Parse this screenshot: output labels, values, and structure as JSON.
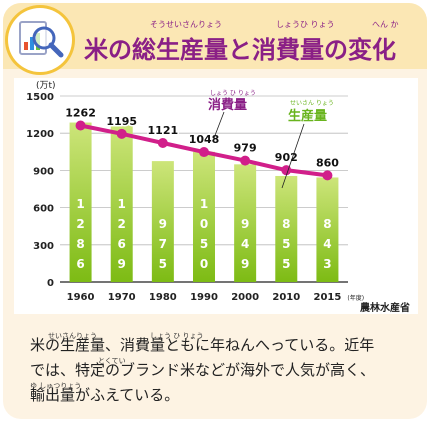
{
  "title": "米の総生産量と消費量の変化",
  "title_ruby": {
    "sousei": "そうせいさんりょう",
    "shouhi": "しょうひ りょう",
    "henka": "へん か"
  },
  "colors": {
    "title": "#8a1f86",
    "bar_light": "#cde57a",
    "bar_dark": "#84bf1d",
    "line": "#d11f8a",
    "production_label": "#69b41e",
    "consumption_label": "#8a1f86"
  },
  "icon": "magnifier-chart-icon",
  "chart_data": {
    "type": "bar",
    "categories": [
      "1960",
      "1970",
      "1980",
      "1990",
      "2000",
      "2010",
      "2015"
    ],
    "ylabel": "(万t)",
    "ylim": [
      0,
      1500
    ],
    "yticks": [
      "0",
      "300",
      "600",
      "900",
      "1200",
      "1500"
    ],
    "x_last_suffix": "(年度)",
    "grid": true,
    "series": [
      {
        "name": "生産量",
        "type": "bar",
        "values": [
          1286,
          1269,
          975,
          1050,
          949,
          855,
          843
        ]
      },
      {
        "name": "消費量",
        "type": "line",
        "values": [
          1262,
          1195,
          1121,
          1048,
          979,
          902,
          860
        ]
      }
    ],
    "labels": {
      "consumption": "消費量",
      "consumption_ruby": "しょう ひ りょう",
      "production": "生産量",
      "production_ruby": "せいさん りょう"
    },
    "source": "農林水産省"
  },
  "description": {
    "line1": "米の生産量、消費量ともに年ねんへっている。近年",
    "line2": "では、特定のブランド米などが海外で人気が高く、",
    "line3": "輸出量がふえている。",
    "ruby_seisan": "せいさんりょう",
    "ruby_shouhi": "しょう ひ りょう",
    "ruby_tokutei": "とくてい",
    "ruby_yushutsu": "ゆ しゅつりょう"
  }
}
